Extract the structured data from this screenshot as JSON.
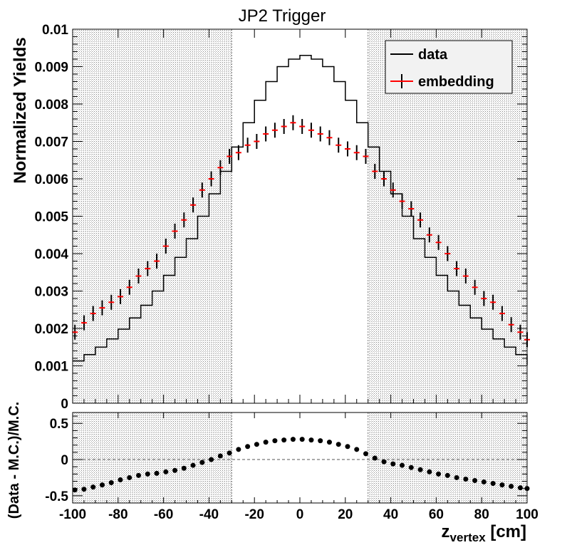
{
  "chart_data": [
    {
      "type": "line",
      "title": "JP2 Trigger",
      "xlabel": "",
      "ylabel": "Normalized Yields",
      "xlim": [
        -100,
        100
      ],
      "ylim": [
        0,
        0.01
      ],
      "grid": false,
      "legend_position": "top-right",
      "shaded_x_ranges": [
        [
          -100,
          -30
        ],
        [
          30,
          100
        ]
      ],
      "x_ticks": [
        "-100",
        "-80",
        "-60",
        "-40",
        "-20",
        "0",
        "20",
        "40",
        "60",
        "80",
        "100"
      ],
      "y_ticks": [
        "0",
        "0.001",
        "0.002",
        "0.003",
        "0.004",
        "0.005",
        "0.006",
        "0.007",
        "0.008",
        "0.009",
        "0.01"
      ],
      "series": [
        {
          "name": "data",
          "style": "step",
          "color": "#000000",
          "x": [
            -100,
            -95,
            -90,
            -85,
            -80,
            -75,
            -70,
            -65,
            -60,
            -55,
            -50,
            -45,
            -40,
            -35,
            -30,
            -25,
            -20,
            -15,
            -10,
            -5,
            0,
            5,
            10,
            15,
            20,
            25,
            30,
            35,
            40,
            45,
            50,
            55,
            60,
            65,
            70,
            75,
            80,
            85,
            90,
            95,
            100
          ],
          "y": [
            0.00113,
            0.0013,
            0.0015,
            0.00172,
            0.00198,
            0.00228,
            0.00262,
            0.003,
            0.00342,
            0.0039,
            0.0044,
            0.005,
            0.0056,
            0.0062,
            0.00685,
            0.0075,
            0.0081,
            0.0086,
            0.009,
            0.0092,
            0.0093,
            0.0092,
            0.009,
            0.0086,
            0.0081,
            0.0075,
            0.00685,
            0.0062,
            0.0056,
            0.005,
            0.0044,
            0.0039,
            0.00342,
            0.003,
            0.00262,
            0.00228,
            0.00198,
            0.00172,
            0.0015,
            0.0013,
            0.00102
          ]
        },
        {
          "name": "embedding",
          "style": "markers-with-errors",
          "color": "#ff0000",
          "error_color": "#000000",
          "x": [
            -99,
            -95,
            -91,
            -87,
            -83,
            -79,
            -75,
            -71,
            -67,
            -63,
            -59,
            -55,
            -51,
            -47,
            -43,
            -39,
            -35,
            -31,
            -27,
            -23,
            -19,
            -15,
            -11,
            -7,
            -3,
            1,
            5,
            9,
            13,
            17,
            21,
            25,
            29,
            33,
            37,
            41,
            45,
            49,
            53,
            57,
            61,
            65,
            69,
            73,
            77,
            81,
            85,
            89,
            93,
            97,
            100
          ],
          "y": [
            0.0019,
            0.00215,
            0.0024,
            0.00255,
            0.0027,
            0.00285,
            0.0031,
            0.0034,
            0.0036,
            0.0038,
            0.0042,
            0.0046,
            0.0049,
            0.0053,
            0.0057,
            0.006,
            0.0063,
            0.0066,
            0.0067,
            0.0069,
            0.007,
            0.0072,
            0.0073,
            0.0074,
            0.0075,
            0.0074,
            0.0073,
            0.0072,
            0.0071,
            0.0069,
            0.0068,
            0.0067,
            0.0066,
            0.0062,
            0.006,
            0.0057,
            0.0054,
            0.0052,
            0.0049,
            0.0045,
            0.0043,
            0.004,
            0.0036,
            0.0034,
            0.0031,
            0.0028,
            0.0027,
            0.0024,
            0.0021,
            0.0019,
            0.0017
          ],
          "error": 0.0002
        }
      ]
    },
    {
      "type": "scatter",
      "title": "",
      "xlabel": "z_vertex [cm]",
      "xlabel_main": "z",
      "xlabel_sub": "vertex",
      "xlabel_unit": " [cm]",
      "ylabel": "(Data - M.C.)/M.C.",
      "xlim": [
        -100,
        100
      ],
      "ylim": [
        -0.6,
        0.65
      ],
      "reference_line_y": 0,
      "shaded_x_ranges": [
        [
          -100,
          -30
        ],
        [
          30,
          100
        ]
      ],
      "x_ticks": [
        "-100",
        "-80",
        "-60",
        "-40",
        "-20",
        "0",
        "20",
        "40",
        "60",
        "80",
        "100"
      ],
      "y_ticks": [
        "-0.5",
        "0",
        "0.5"
      ],
      "series": [
        {
          "name": "",
          "color": "#000000",
          "x": [
            -99,
            -95,
            -91,
            -87,
            -83,
            -79,
            -75,
            -71,
            -67,
            -63,
            -59,
            -55,
            -51,
            -47,
            -43,
            -39,
            -35,
            -31,
            -27,
            -23,
            -19,
            -15,
            -11,
            -7,
            -3,
            1,
            5,
            9,
            13,
            17,
            21,
            25,
            29,
            33,
            37,
            41,
            45,
            49,
            53,
            57,
            61,
            65,
            69,
            73,
            77,
            81,
            85,
            89,
            93,
            97,
            100
          ],
          "y": [
            -0.42,
            -0.41,
            -0.38,
            -0.35,
            -0.32,
            -0.28,
            -0.25,
            -0.22,
            -0.2,
            -0.19,
            -0.17,
            -0.15,
            -0.12,
            -0.08,
            -0.04,
            0.0,
            0.05,
            0.09,
            0.14,
            0.18,
            0.21,
            0.24,
            0.26,
            0.27,
            0.28,
            0.28,
            0.27,
            0.26,
            0.24,
            0.21,
            0.18,
            0.14,
            0.08,
            0.02,
            -0.03,
            -0.06,
            -0.08,
            -0.11,
            -0.14,
            -0.17,
            -0.2,
            -0.22,
            -0.25,
            -0.27,
            -0.29,
            -0.31,
            -0.33,
            -0.35,
            -0.37,
            -0.39,
            -0.4
          ]
        }
      ]
    }
  ]
}
